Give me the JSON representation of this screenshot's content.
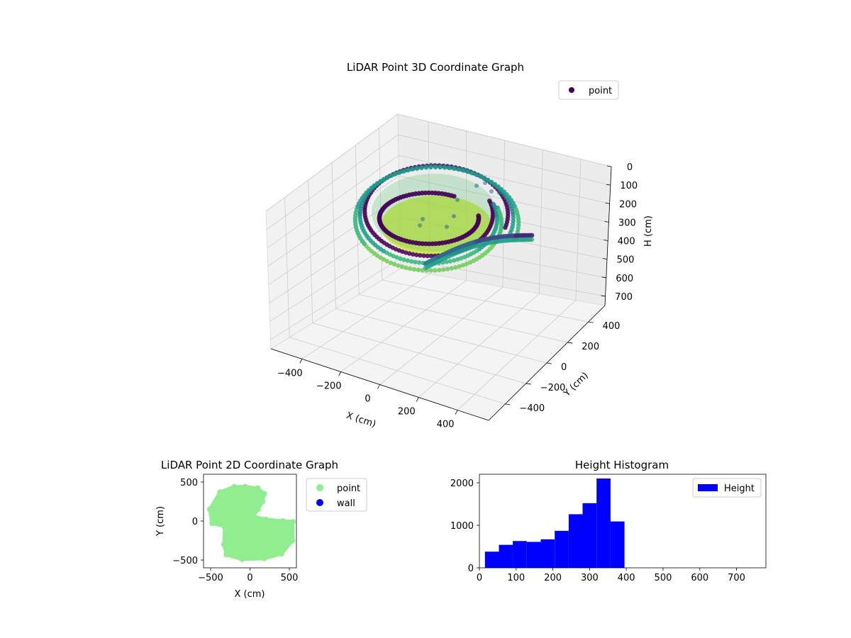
{
  "chart_data": [
    {
      "type": "scatter",
      "projection": "3d",
      "title": "LiDAR Point 3D Coordinate Graph",
      "xlabel": "X (cm)",
      "ylabel": "Y (cm)",
      "zlabel": "H (cm)",
      "x_ticks": [
        "−400",
        "−200",
        "0",
        "200",
        "400"
      ],
      "y_ticks": [
        "−400",
        "−200",
        "0",
        "200",
        "400"
      ],
      "z_ticks": [
        "0",
        "100",
        "200",
        "300",
        "400",
        "500",
        "600",
        "700"
      ],
      "xlim": [
        -560,
        560
      ],
      "ylim": [
        -560,
        560
      ],
      "zlim": [
        0,
        750
      ],
      "z_inverted": true,
      "colormap": "viridis",
      "legend": {
        "placement": "top-right",
        "entries": [
          {
            "label": "point",
            "color": "#440154"
          }
        ]
      },
      "series": [
        {
          "name": "point",
          "description_shape": "bowl-shaped spiral ring of points around the origin",
          "points": [
            {
              "x": -300,
              "y": -100,
              "z": 100
            },
            {
              "x": -250,
              "y": 100,
              "z": 150
            },
            {
              "x": -150,
              "y": 250,
              "z": 100
            },
            {
              "x": 0,
              "y": 300,
              "z": 80
            },
            {
              "x": 150,
              "y": 250,
              "z": 150
            },
            {
              "x": 250,
              "y": 100,
              "z": 250
            },
            {
              "x": 300,
              "y": -100,
              "z": 350
            },
            {
              "x": 200,
              "y": -300,
              "z": 400
            },
            {
              "x": 0,
              "y": -400,
              "z": 420
            },
            {
              "x": -200,
              "y": -350,
              "z": 380
            },
            {
              "x": -350,
              "y": -200,
              "z": 300
            },
            {
              "x": -400,
              "y": 0,
              "z": 200
            },
            {
              "x": -300,
              "y": 250,
              "z": 150
            },
            {
              "x": 400,
              "y": -100,
              "z": 300
            },
            {
              "x": 500,
              "y": 0,
              "z": 150
            },
            {
              "x": 0,
              "y": 0,
              "z": 390
            },
            {
              "x": 100,
              "y": -100,
              "z": 330
            }
          ]
        }
      ]
    },
    {
      "type": "scatter",
      "title": "LiDAR Point 2D Coordinate Graph",
      "xlabel": "X (cm)",
      "ylabel": "Y (cm)",
      "x_ticks": [
        "−500",
        "0",
        "500"
      ],
      "y_ticks": [
        "−500",
        "0",
        "500"
      ],
      "xlim": [
        -590,
        590
      ],
      "ylim": [
        -600,
        600
      ],
      "legend": {
        "placement": "outside-right",
        "entries": [
          {
            "label": "point",
            "color": "#90ee90"
          },
          {
            "label": "wall",
            "color": "#0000ff"
          }
        ]
      },
      "series": [
        {
          "name": "point",
          "color": "#90ee90",
          "outline": [
            [
              -60,
              440
            ],
            [
              100,
              420
            ],
            [
              180,
              350
            ],
            [
              160,
              250
            ],
            [
              100,
              150
            ],
            [
              40,
              60
            ],
            [
              200,
              20
            ],
            [
              420,
              0
            ],
            [
              545,
              -10
            ],
            [
              540,
              -250
            ],
            [
              400,
              -420
            ],
            [
              180,
              -480
            ],
            [
              -100,
              -490
            ],
            [
              -300,
              -430
            ],
            [
              -330,
              -300
            ],
            [
              -320,
              -80
            ],
            [
              -150,
              -100
            ],
            [
              -480,
              -30
            ],
            [
              -510,
              150
            ],
            [
              -380,
              370
            ],
            [
              -200,
              440
            ]
          ]
        },
        {
          "name": "wall",
          "color": "#0000ff",
          "points": []
        }
      ]
    },
    {
      "type": "bar",
      "subtype": "histogram",
      "title": "Height Histogram",
      "xlabel": "",
      "ylabel": "",
      "xlim": [
        0,
        780
      ],
      "ylim": [
        0,
        2200
      ],
      "x_ticks": [
        "0",
        "100",
        "200",
        "300",
        "400",
        "500",
        "600",
        "700"
      ],
      "y_ticks": [
        "0",
        "1000",
        "2000"
      ],
      "color": "#0000ff",
      "legend": {
        "placement": "top-right",
        "entries": [
          {
            "label": "Height",
            "color": "#0000ff"
          }
        ]
      },
      "bin_edges": [
        15,
        53,
        91,
        129,
        167,
        205,
        243,
        281,
        319,
        357,
        395
      ],
      "values": [
        380,
        540,
        630,
        610,
        670,
        870,
        1260,
        1520,
        2100,
        1090
      ],
      "series": [
        {
          "name": "Height",
          "values": [
            380,
            540,
            630,
            610,
            670,
            870,
            1260,
            1520,
            2100,
            1090
          ]
        }
      ]
    }
  ]
}
